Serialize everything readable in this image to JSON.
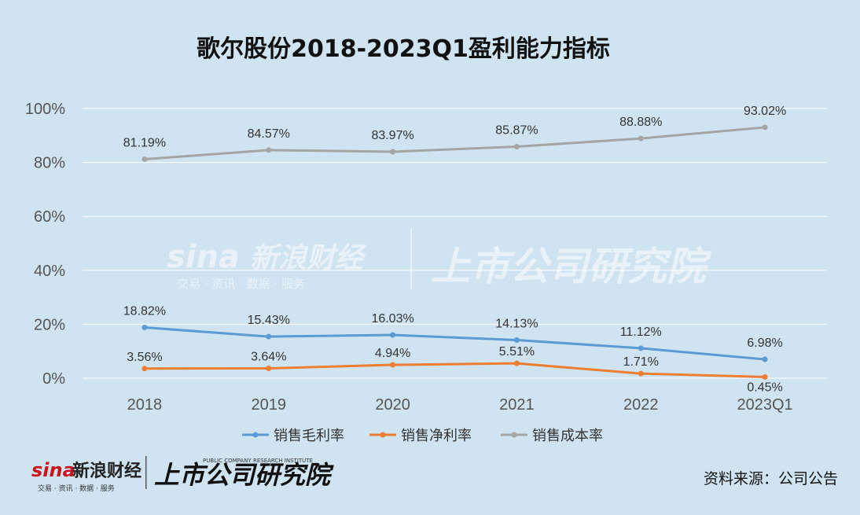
{
  "chart_data": {
    "type": "line",
    "title": "歌尔股份2018-2023Q1盈利能力指标",
    "categories": [
      "2018",
      "2019",
      "2020",
      "2021",
      "2022",
      "2023Q1"
    ],
    "ylim": [
      0,
      100
    ],
    "yticks": [
      "0%",
      "20%",
      "40%",
      "60%",
      "80%",
      "100%"
    ],
    "ytick_values": [
      0,
      20,
      40,
      60,
      80,
      100
    ],
    "grid": true,
    "legend_position": "bottom",
    "series": [
      {
        "name": "销售毛利率",
        "color": "#5b9bd5",
        "values": [
          18.82,
          15.43,
          16.03,
          14.13,
          11.12,
          6.98
        ],
        "labels": [
          "18.82%",
          "15.43%",
          "16.03%",
          "14.13%",
          "11.12%",
          "6.98%"
        ]
      },
      {
        "name": "销售净利率",
        "color": "#ed7d31",
        "values": [
          3.56,
          3.64,
          4.94,
          5.51,
          1.71,
          0.45
        ],
        "labels": [
          "3.56%",
          "3.64%",
          "4.94%",
          "5.51%",
          "1.71%",
          "0.45%"
        ]
      },
      {
        "name": "销售成本率",
        "color": "#a5a5a5",
        "values": [
          81.19,
          84.57,
          83.97,
          85.87,
          88.88,
          93.02
        ],
        "labels": [
          "81.19%",
          "84.57%",
          "83.97%",
          "85.87%",
          "88.88%",
          "93.02%"
        ]
      }
    ]
  },
  "source": "资料来源：公司公告",
  "watermark": {
    "brand": "sina",
    "brand_cn": "新浪财经",
    "brand_sub": "交易 · 资讯 · 数据 · 服务",
    "institute": "上市公司研究院",
    "institute_en": "PUBLIC COMPANY RESEARCH INSTITUTE"
  }
}
